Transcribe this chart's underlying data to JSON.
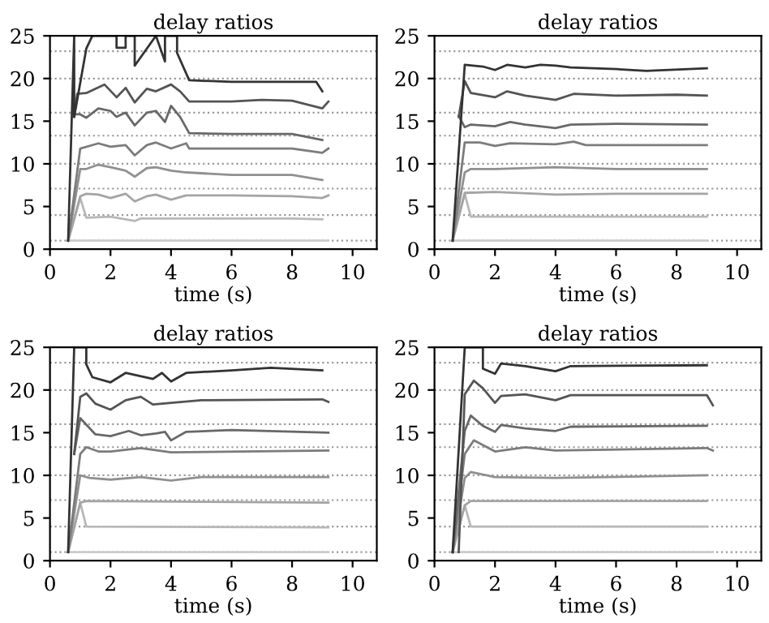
{
  "chart_data": [
    {
      "type": "line",
      "title": "delay ratios",
      "xlabel": "time (s)",
      "xlim": [
        0,
        10.8
      ],
      "ylim": [
        0,
        25
      ],
      "xticks": [
        0,
        2,
        4,
        6,
        8,
        10
      ],
      "yticks": [
        0,
        5,
        10,
        15,
        20,
        25
      ],
      "grid": false,
      "line_style": "solid",
      "marker": "none",
      "ref_lines": [
        {
          "axis": "y",
          "value": 1,
          "color": "#9a9a9a",
          "line_style": "dotted"
        },
        {
          "axis": "y",
          "value": 4,
          "color": "#9a9a9a",
          "line_style": "dotted"
        },
        {
          "axis": "y",
          "value": 7.1,
          "color": "#9a9a9a",
          "line_style": "dotted"
        },
        {
          "axis": "y",
          "value": 10,
          "color": "#9a9a9a",
          "line_style": "dotted"
        },
        {
          "axis": "y",
          "value": 13.3,
          "color": "#9a9a9a",
          "line_style": "dotted"
        },
        {
          "axis": "y",
          "value": 16,
          "color": "#9a9a9a",
          "line_style": "dotted"
        },
        {
          "axis": "y",
          "value": 20,
          "color": "#9a9a9a",
          "line_style": "dotted"
        },
        {
          "axis": "y",
          "value": 23.2,
          "color": "#9a9a9a",
          "line_style": "dotted"
        }
      ],
      "series": [
        {
          "color": "#cccccc",
          "x": [
            0.6,
            9.2
          ],
          "values": [
            1,
            1
          ]
        },
        {
          "color": "#b8b8b8",
          "x": [
            0.6,
            1.0,
            1.2,
            2.0,
            2.8,
            3.0,
            4.0,
            6.0,
            8.0,
            9.0
          ],
          "values": [
            1,
            6.0,
            3.7,
            3.8,
            3.3,
            3.6,
            3.6,
            3.6,
            3.6,
            3.5
          ]
        },
        {
          "color": "#a4a4a4",
          "x": [
            0.6,
            1.0,
            1.2,
            1.6,
            2.0,
            2.5,
            2.8,
            3.2,
            3.5,
            4.0,
            4.5,
            6.0,
            8.0,
            9.0,
            9.2
          ],
          "values": [
            1,
            6.2,
            6.5,
            6.4,
            6.0,
            6.5,
            5.6,
            6.2,
            6.4,
            5.8,
            6.3,
            6.3,
            6.2,
            6.0,
            6.3
          ]
        },
        {
          "color": "#909090",
          "x": [
            0.6,
            1.0,
            1.2,
            1.6,
            2.0,
            2.5,
            2.8,
            3.2,
            3.5,
            4.0,
            4.5,
            6.0,
            8.0,
            9.0
          ],
          "values": [
            1,
            9.4,
            9.4,
            9.9,
            9.6,
            9.2,
            8.5,
            9.5,
            9.6,
            9.2,
            9.0,
            8.7,
            8.7,
            8.1
          ]
        },
        {
          "color": "#7c7c7c",
          "x": [
            0.6,
            1.0,
            1.6,
            2.0,
            2.5,
            2.8,
            3.2,
            3.5,
            4.0,
            4.5,
            4.6,
            6.0,
            8.0,
            9.0,
            9.2
          ],
          "values": [
            1,
            11.8,
            12.4,
            12.0,
            12.2,
            11.0,
            12.2,
            12.5,
            11.8,
            12.4,
            11.8,
            11.8,
            11.8,
            11.3,
            11.8
          ]
        },
        {
          "color": "#686868",
          "x": [
            0.8,
            1.0,
            1.2,
            1.6,
            2.0,
            2.2,
            2.5,
            2.8,
            3.2,
            3.5,
            3.8,
            4.0,
            4.3,
            4.6,
            6.0,
            8.0,
            9.0
          ],
          "values": [
            15.8,
            15.8,
            15.4,
            16.5,
            16.2,
            15.5,
            16.0,
            14.5,
            16.0,
            16.2,
            14.9,
            16.8,
            15.5,
            13.6,
            13.5,
            13.5,
            12.8
          ]
        },
        {
          "color": "#545454",
          "x": [
            0.8,
            0.9,
            1.2,
            1.8,
            2.2,
            2.5,
            2.8,
            3.2,
            3.5,
            4.0,
            4.3,
            4.6,
            6.0,
            7.0,
            8.0,
            9.0,
            9.2
          ],
          "values": [
            15.5,
            18.2,
            18.3,
            19.3,
            17.8,
            18.9,
            17.2,
            18.8,
            18.5,
            19.3,
            18.5,
            17.3,
            17.3,
            17.5,
            17.4,
            16.5,
            17.3
          ]
        },
        {
          "color": "#333333",
          "x": [
            0.6,
            0.8,
            0.8,
            1.2,
            1.4,
            2.2,
            2.2,
            2.5,
            2.5,
            2.8,
            2.8,
            3.5,
            3.8,
            3.8,
            4.2,
            4.2,
            4.6,
            6.0,
            8.0,
            8.8,
            9.0
          ],
          "values": [
            1,
            25,
            15.5,
            23.5,
            25,
            25,
            23.6,
            23.6,
            25,
            25,
            21.5,
            25,
            22.0,
            25,
            25,
            23.0,
            19.8,
            19.6,
            19.6,
            19.6,
            18.5
          ]
        }
      ]
    },
    {
      "type": "line",
      "title": "delay ratios",
      "xlabel": "time (s)",
      "xlim": [
        0,
        10.8
      ],
      "ylim": [
        0,
        25
      ],
      "xticks": [
        0,
        2,
        4,
        6,
        8,
        10
      ],
      "yticks": [
        0,
        5,
        10,
        15,
        20,
        25
      ],
      "grid": false,
      "line_style": "solid",
      "marker": "none",
      "ref_lines": [
        {
          "axis": "y",
          "value": 1,
          "color": "#9a9a9a",
          "line_style": "dotted"
        },
        {
          "axis": "y",
          "value": 4,
          "color": "#9a9a9a",
          "line_style": "dotted"
        },
        {
          "axis": "y",
          "value": 7.1,
          "color": "#9a9a9a",
          "line_style": "dotted"
        },
        {
          "axis": "y",
          "value": 10,
          "color": "#9a9a9a",
          "line_style": "dotted"
        },
        {
          "axis": "y",
          "value": 13.3,
          "color": "#9a9a9a",
          "line_style": "dotted"
        },
        {
          "axis": "y",
          "value": 16,
          "color": "#9a9a9a",
          "line_style": "dotted"
        },
        {
          "axis": "y",
          "value": 20,
          "color": "#9a9a9a",
          "line_style": "dotted"
        },
        {
          "axis": "y",
          "value": 23.2,
          "color": "#9a9a9a",
          "line_style": "dotted"
        }
      ],
      "series": [
        {
          "color": "#cccccc",
          "x": [
            0.6,
            9.0
          ],
          "values": [
            1,
            1
          ]
        },
        {
          "color": "#b8b8b8",
          "x": [
            0.6,
            1.0,
            1.2,
            9.0
          ],
          "values": [
            1,
            6.5,
            3.8,
            3.8
          ]
        },
        {
          "color": "#a4a4a4",
          "x": [
            0.6,
            1.0,
            2.0,
            4.0,
            6.0,
            9.0
          ],
          "values": [
            1,
            6.6,
            6.7,
            6.4,
            6.5,
            6.5
          ]
        },
        {
          "color": "#909090",
          "x": [
            0.6,
            1.0,
            1.2,
            2.0,
            4.0,
            6.0,
            9.0
          ],
          "values": [
            1,
            9.0,
            9.4,
            9.4,
            9.6,
            9.4,
            9.4
          ]
        },
        {
          "color": "#7c7c7c",
          "x": [
            0.6,
            1.0,
            1.5,
            2.0,
            2.5,
            4.0,
            4.6,
            5.0,
            9.0
          ],
          "values": [
            1,
            12.5,
            12.5,
            12.1,
            12.4,
            12.3,
            12.6,
            12.2,
            12.2
          ]
        },
        {
          "color": "#686868",
          "x": [
            0.8,
            1.0,
            1.2,
            2.0,
            2.5,
            3.0,
            4.0,
            4.5,
            6.0,
            9.0
          ],
          "values": [
            15.6,
            14.3,
            14.6,
            14.4,
            14.9,
            14.6,
            14.2,
            14.6,
            14.7,
            14.6
          ]
        },
        {
          "color": "#545454",
          "x": [
            0.8,
            1.0,
            1.2,
            2.0,
            2.4,
            3.0,
            4.0,
            4.6,
            6.0,
            8.0,
            9.0
          ],
          "values": [
            15.5,
            19.7,
            18.3,
            17.8,
            18.5,
            18.0,
            17.5,
            18.2,
            18.0,
            18.1,
            18.0
          ]
        },
        {
          "color": "#333333",
          "x": [
            0.6,
            1.0,
            1.6,
            2.0,
            2.4,
            3.0,
            3.5,
            4.0,
            4.5,
            6.0,
            7.0,
            9.0
          ],
          "values": [
            1,
            21.6,
            21.4,
            21.0,
            21.6,
            21.3,
            21.6,
            21.5,
            21.3,
            21.1,
            20.9,
            21.2
          ]
        }
      ]
    },
    {
      "type": "line",
      "title": "delay ratios",
      "xlabel": "time (s)",
      "xlim": [
        0,
        10.8
      ],
      "ylim": [
        0,
        25
      ],
      "xticks": [
        0,
        2,
        4,
        6,
        8,
        10
      ],
      "yticks": [
        0,
        5,
        10,
        15,
        20,
        25
      ],
      "grid": false,
      "line_style": "solid",
      "marker": "none",
      "ref_lines": [
        {
          "axis": "y",
          "value": 1,
          "color": "#9a9a9a",
          "line_style": "dotted"
        },
        {
          "axis": "y",
          "value": 4,
          "color": "#9a9a9a",
          "line_style": "dotted"
        },
        {
          "axis": "y",
          "value": 7.1,
          "color": "#9a9a9a",
          "line_style": "dotted"
        },
        {
          "axis": "y",
          "value": 10,
          "color": "#9a9a9a",
          "line_style": "dotted"
        },
        {
          "axis": "y",
          "value": 13.3,
          "color": "#9a9a9a",
          "line_style": "dotted"
        },
        {
          "axis": "y",
          "value": 16,
          "color": "#9a9a9a",
          "line_style": "dotted"
        },
        {
          "axis": "y",
          "value": 20,
          "color": "#9a9a9a",
          "line_style": "dotted"
        },
        {
          "axis": "y",
          "value": 23.2,
          "color": "#9a9a9a",
          "line_style": "dotted"
        }
      ],
      "series": [
        {
          "color": "#cccccc",
          "x": [
            0.6,
            9.2
          ],
          "values": [
            1,
            1
          ]
        },
        {
          "color": "#b8b8b8",
          "x": [
            0.6,
            1.0,
            1.2,
            9.2
          ],
          "values": [
            1,
            6.8,
            4.0,
            3.9
          ]
        },
        {
          "color": "#a4a4a4",
          "x": [
            0.6,
            1.0,
            1.2,
            9.2
          ],
          "values": [
            1,
            6.8,
            7.0,
            6.8
          ]
        },
        {
          "color": "#909090",
          "x": [
            0.6,
            1.0,
            1.3,
            2.0,
            3.0,
            4.0,
            5.0,
            9.2
          ],
          "values": [
            1,
            10.0,
            9.7,
            9.5,
            9.8,
            9.4,
            9.8,
            9.8
          ]
        },
        {
          "color": "#7c7c7c",
          "x": [
            0.6,
            1.0,
            1.2,
            1.6,
            2.0,
            3.0,
            4.0,
            9.2
          ],
          "values": [
            1,
            12.5,
            13.3,
            12.8,
            12.8,
            13.2,
            12.7,
            12.9
          ]
        },
        {
          "color": "#686868",
          "x": [
            0.8,
            1.0,
            1.5,
            2.0,
            2.6,
            3.0,
            3.5,
            3.8,
            4.0,
            4.5,
            6.0,
            9.2
          ],
          "values": [
            12.5,
            16.7,
            14.8,
            14.6,
            15.2,
            14.7,
            14.9,
            15.1,
            14.1,
            15.1,
            15.3,
            15.0
          ]
        },
        {
          "color": "#545454",
          "x": [
            0.8,
            1.0,
            1.2,
            1.5,
            2.0,
            2.5,
            3.0,
            3.4,
            4.0,
            5.0,
            9.0,
            9.2
          ],
          "values": [
            12.5,
            19.2,
            19.6,
            18.4,
            17.7,
            18.8,
            19.2,
            18.3,
            18.5,
            18.8,
            18.9,
            18.6
          ]
        },
        {
          "color": "#333333",
          "x": [
            0.6,
            0.8,
            1.2,
            1.2,
            1.4,
            2.0,
            2.5,
            3.4,
            3.7,
            4.0,
            4.5,
            6.0,
            7.3,
            9.0
          ],
          "values": [
            1,
            25,
            25,
            23.0,
            21.5,
            20.9,
            22.0,
            21.3,
            22.0,
            21.0,
            22.0,
            22.3,
            22.6,
            22.3
          ]
        }
      ]
    },
    {
      "type": "line",
      "title": "delay ratios",
      "xlabel": "time (s)",
      "xlim": [
        0,
        10.8
      ],
      "ylim": [
        0,
        25
      ],
      "xticks": [
        0,
        2,
        4,
        6,
        8,
        10
      ],
      "yticks": [
        0,
        5,
        10,
        15,
        20,
        25
      ],
      "grid": false,
      "line_style": "solid",
      "marker": "none",
      "ref_lines": [
        {
          "axis": "y",
          "value": 1,
          "color": "#9a9a9a",
          "line_style": "dotted"
        },
        {
          "axis": "y",
          "value": 4,
          "color": "#9a9a9a",
          "line_style": "dotted"
        },
        {
          "axis": "y",
          "value": 7.1,
          "color": "#9a9a9a",
          "line_style": "dotted"
        },
        {
          "axis": "y",
          "value": 10,
          "color": "#9a9a9a",
          "line_style": "dotted"
        },
        {
          "axis": "y",
          "value": 13.3,
          "color": "#9a9a9a",
          "line_style": "dotted"
        },
        {
          "axis": "y",
          "value": 16,
          "color": "#9a9a9a",
          "line_style": "dotted"
        },
        {
          "axis": "y",
          "value": 20,
          "color": "#9a9a9a",
          "line_style": "dotted"
        },
        {
          "axis": "y",
          "value": 23.2,
          "color": "#9a9a9a",
          "line_style": "dotted"
        }
      ],
      "series": [
        {
          "color": "#cccccc",
          "x": [
            0.6,
            9.2
          ],
          "values": [
            1,
            1
          ]
        },
        {
          "color": "#b8b8b8",
          "x": [
            0.6,
            1.0,
            1.2,
            9.0
          ],
          "values": [
            1,
            6.5,
            4.0,
            4.0
          ]
        },
        {
          "color": "#a4a4a4",
          "x": [
            0.6,
            1.0,
            1.2,
            9.0
          ],
          "values": [
            1,
            6.5,
            7.0,
            7.0
          ]
        },
        {
          "color": "#909090",
          "x": [
            0.6,
            1.0,
            1.2,
            2.0,
            4.0,
            9.0
          ],
          "values": [
            1,
            9.7,
            10.4,
            9.8,
            9.7,
            10.0
          ]
        },
        {
          "color": "#7c7c7c",
          "x": [
            0.6,
            1.0,
            1.3,
            2.0,
            3.0,
            4.0,
            9.0,
            9.2
          ],
          "values": [
            1,
            12.5,
            14.1,
            12.8,
            13.3,
            12.9,
            13.2,
            12.9
          ]
        },
        {
          "color": "#686868",
          "x": [
            0.6,
            1.0,
            1.2,
            1.6,
            2.0,
            2.2,
            3.0,
            4.0,
            4.5,
            9.0
          ],
          "values": [
            1,
            15.2,
            17.0,
            15.8,
            15.1,
            15.9,
            15.5,
            15.2,
            15.7,
            15.8
          ]
        },
        {
          "color": "#545454",
          "x": [
            0.8,
            1.0,
            1.3,
            1.6,
            2.0,
            2.2,
            3.0,
            4.0,
            4.5,
            9.0,
            9.2
          ],
          "values": [
            1,
            19.5,
            21.1,
            20.2,
            18.5,
            19.3,
            19.5,
            18.8,
            19.4,
            19.4,
            18.2
          ]
        },
        {
          "color": "#333333",
          "x": [
            0.6,
            1.0,
            1.6,
            1.6,
            2.0,
            2.2,
            3.0,
            4.0,
            4.5,
            9.0
          ],
          "values": [
            1,
            25,
            25,
            22.5,
            21.9,
            23.1,
            22.8,
            22.2,
            22.8,
            22.9
          ]
        }
      ]
    }
  ]
}
